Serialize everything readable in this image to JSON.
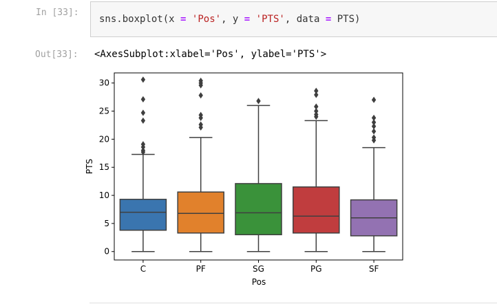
{
  "input_cell": {
    "prompt": "In [33]:",
    "code": {
      "fn": "sns.boxplot",
      "x_kw": "x",
      "x_val": "'Pos'",
      "y_kw": "y",
      "y_val": "'PTS'",
      "data_kw": "data",
      "data_val": "PTS"
    }
  },
  "output_cell": {
    "prompt": "Out[33]:",
    "text": "<AxesSubplot:xlabel='Pos', ylabel='PTS'>"
  },
  "chart_data": {
    "type": "boxplot",
    "xlabel": "Pos",
    "ylabel": "PTS",
    "ylim": [
      -1.5,
      31.8
    ],
    "yticks": [
      0,
      5,
      10,
      15,
      20,
      25,
      30
    ],
    "categories": [
      "C",
      "PF",
      "SG",
      "PG",
      "SF"
    ],
    "colors": [
      "#3a75af",
      "#e1812c",
      "#3a923a",
      "#c03d3e",
      "#9372b2"
    ],
    "boxes": [
      {
        "category": "C",
        "whislo": 0,
        "q1": 3.8,
        "med": 7.0,
        "q3": 9.3,
        "whishi": 17.3,
        "fliers": [
          30.6,
          27.1,
          24.7,
          23.3,
          19.1,
          18.6,
          18.0,
          17.7
        ]
      },
      {
        "category": "PF",
        "whislo": 0,
        "q1": 3.3,
        "med": 6.8,
        "q3": 10.6,
        "whishi": 20.3,
        "fliers": [
          30.4,
          30.0,
          29.6,
          27.8,
          24.3,
          23.8,
          22.6,
          22.1
        ]
      },
      {
        "category": "SG",
        "whislo": 0,
        "q1": 3.0,
        "med": 6.9,
        "q3": 12.1,
        "whishi": 26.0,
        "fliers": [
          26.8
        ]
      },
      {
        "category": "PG",
        "whislo": 0,
        "q1": 3.3,
        "med": 6.3,
        "q3": 11.5,
        "whishi": 23.3,
        "fliers": [
          28.6,
          27.9,
          25.8,
          25.0,
          24.4,
          24.0
        ]
      },
      {
        "category": "SF",
        "whislo": 0,
        "q1": 2.8,
        "med": 6.0,
        "q3": 9.2,
        "whishi": 18.5,
        "fliers": [
          27.0,
          23.8,
          23.0,
          22.3,
          21.4,
          20.3,
          19.8
        ]
      }
    ]
  }
}
